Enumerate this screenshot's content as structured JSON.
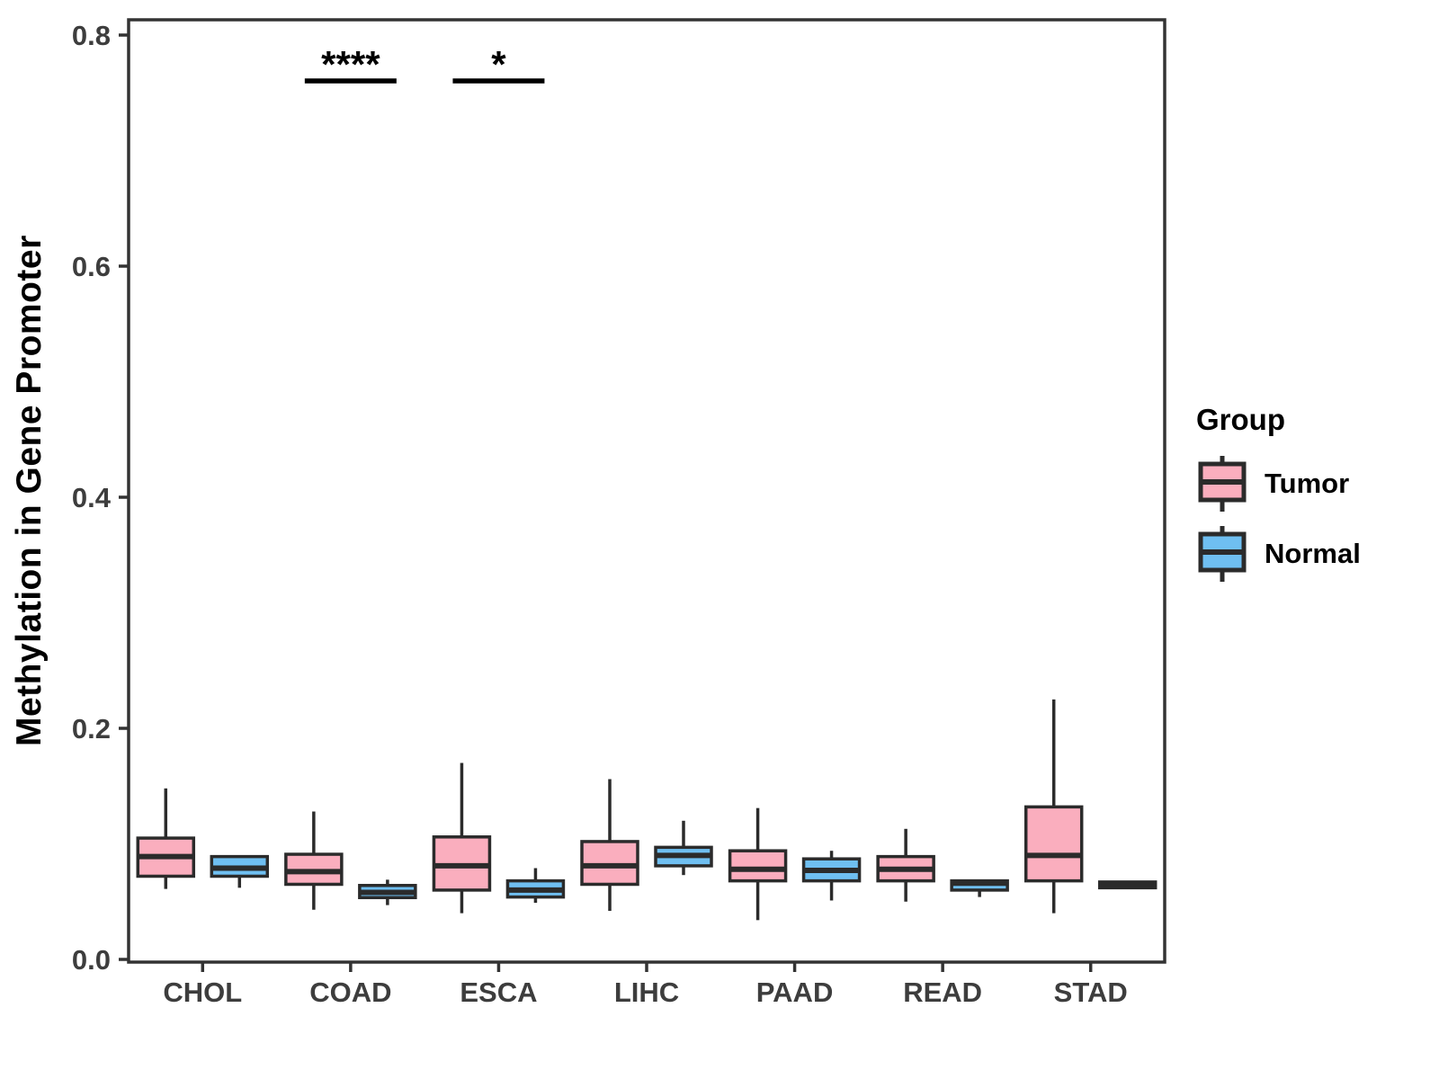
{
  "chart_data": {
    "type": "boxplot",
    "title": "",
    "ylabel": "Methylation in Gene Promoter",
    "xlabel": "",
    "ylim": [
      0,
      0.8
    ],
    "y_ticks": [
      0.0,
      0.2,
      0.4,
      0.6,
      0.8
    ],
    "y_tick_labels": [
      "0.0",
      "0.2",
      "0.4",
      "0.6",
      "0.8"
    ],
    "grid": false,
    "legend_position": "right",
    "legend_title": "Group",
    "categories": [
      "CHOL",
      "COAD",
      "ESCA",
      "LIHC",
      "PAAD",
      "READ",
      "STAD"
    ],
    "series": [
      {
        "name": "Tumor",
        "color": "#FAAEBE",
        "boxes": [
          {
            "min": 0.061,
            "q1": 0.072,
            "median": 0.089,
            "q3": 0.105,
            "max": 0.148
          },
          {
            "min": 0.043,
            "q1": 0.065,
            "median": 0.076,
            "q3": 0.091,
            "max": 0.128
          },
          {
            "min": 0.04,
            "q1": 0.06,
            "median": 0.081,
            "q3": 0.106,
            "max": 0.17
          },
          {
            "min": 0.042,
            "q1": 0.065,
            "median": 0.081,
            "q3": 0.102,
            "max": 0.156
          },
          {
            "min": 0.034,
            "q1": 0.068,
            "median": 0.078,
            "q3": 0.094,
            "max": 0.131
          },
          {
            "min": 0.05,
            "q1": 0.068,
            "median": 0.078,
            "q3": 0.089,
            "max": 0.113
          },
          {
            "min": 0.04,
            "q1": 0.068,
            "median": 0.09,
            "q3": 0.132,
            "max": 0.225
          }
        ]
      },
      {
        "name": "Normal",
        "color": "#6FBFF1",
        "boxes": [
          {
            "min": 0.062,
            "q1": 0.072,
            "median": 0.079,
            "q3": 0.089,
            "max": 0.089
          },
          {
            "min": 0.047,
            "q1": 0.0535,
            "median": 0.058,
            "q3": 0.064,
            "max": 0.069
          },
          {
            "min": 0.049,
            "q1": 0.054,
            "median": 0.06,
            "q3": 0.068,
            "max": 0.079
          },
          {
            "min": 0.073,
            "q1": 0.081,
            "median": 0.09,
            "q3": 0.097,
            "max": 0.12
          },
          {
            "min": 0.051,
            "q1": 0.068,
            "median": 0.077,
            "q3": 0.087,
            "max": 0.094
          },
          {
            "min": 0.054,
            "q1": 0.06,
            "median": 0.066,
            "q3": 0.068,
            "max": 0.068
          },
          {
            "min": 0.062,
            "q1": 0.062,
            "median": 0.0645,
            "q3": 0.067,
            "max": 0.067
          }
        ]
      }
    ],
    "significance": [
      {
        "category": "COAD",
        "label": "****"
      },
      {
        "category": "ESCA",
        "label": "*"
      }
    ]
  },
  "colors": {
    "box_border": "#2b2b2b",
    "panel_border": "#333333",
    "tick_label": "#3d3d3d",
    "annotation": "#000000"
  },
  "legend": {
    "title": "Group",
    "items": [
      {
        "label": "Tumor"
      },
      {
        "label": "Normal"
      }
    ]
  }
}
